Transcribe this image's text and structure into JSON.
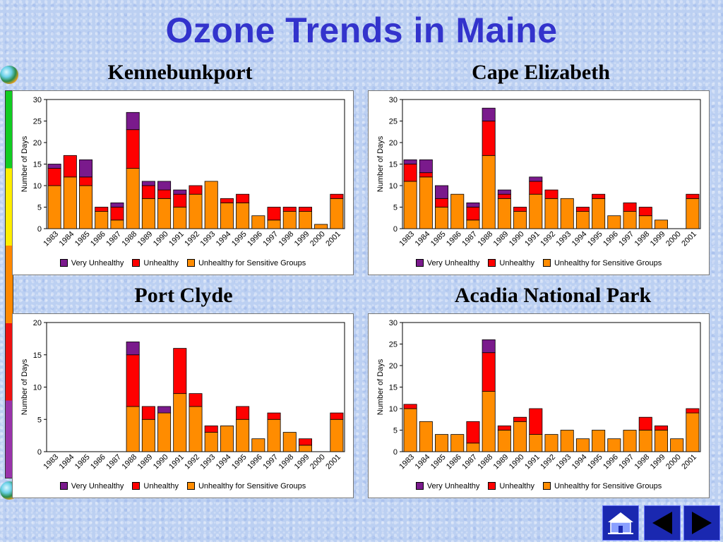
{
  "title": "Ozone Trends in Maine",
  "legend": {
    "very_unhealthy": "Very Unhealthy",
    "unhealthy": "Unhealthy",
    "sensitive": "Unhealthy for Sensitive Groups"
  },
  "colors": {
    "very_unhealthy": "#7a1a8c",
    "unhealthy": "#ff0000",
    "sensitive": "#ff8c00",
    "title": "#3333cc"
  },
  "chart_data": [
    {
      "type": "bar",
      "title": "Kennebunkport",
      "ylabel": "Number of Days",
      "ylim": [
        0,
        30
      ],
      "yticks": [
        0,
        5,
        10,
        15,
        20,
        25,
        30
      ],
      "stacked": true,
      "categories": [
        "1983",
        "1984",
        "1985",
        "1986",
        "1987",
        "1988",
        "1989",
        "1990",
        "1991",
        "1992",
        "1993",
        "1994",
        "1995",
        "1996",
        "1997",
        "1998",
        "1999",
        "2000",
        "2001"
      ],
      "series": [
        {
          "name": "Unhealthy for Sensitive Groups",
          "values": [
            10,
            12,
            10,
            4,
            2,
            14,
            7,
            7,
            5,
            8,
            11,
            6,
            6,
            3,
            2,
            4,
            4,
            1,
            7
          ]
        },
        {
          "name": "Unhealthy",
          "values": [
            4,
            5,
            2,
            1,
            3,
            9,
            3,
            2,
            3,
            2,
            0,
            1,
            2,
            0,
            3,
            1,
            1,
            0,
            1
          ]
        },
        {
          "name": "Very Unhealthy",
          "values": [
            1,
            0,
            4,
            0,
            1,
            4,
            1,
            2,
            1,
            0,
            0,
            0,
            0,
            0,
            0,
            0,
            0,
            0,
            0
          ]
        }
      ],
      "legend": "bottom"
    },
    {
      "type": "bar",
      "title": "Cape Elizabeth",
      "ylabel": "Number of Days",
      "ylim": [
        0,
        30
      ],
      "yticks": [
        0,
        5,
        10,
        15,
        20,
        25,
        30
      ],
      "stacked": true,
      "categories": [
        "1983",
        "1984",
        "1985",
        "1986",
        "1987",
        "1988",
        "1989",
        "1990",
        "1991",
        "1992",
        "1993",
        "1994",
        "1995",
        "1996",
        "1997",
        "1998",
        "1999",
        "2000",
        "2001"
      ],
      "series": [
        {
          "name": "Unhealthy for Sensitive Groups",
          "values": [
            11,
            12,
            5,
            8,
            2,
            17,
            7,
            4,
            8,
            7,
            7,
            4,
            7,
            3,
            4,
            3,
            2,
            0,
            7
          ]
        },
        {
          "name": "Unhealthy",
          "values": [
            4,
            1,
            2,
            0,
            3,
            8,
            1,
            1,
            3,
            2,
            0,
            1,
            1,
            0,
            2,
            2,
            0,
            0,
            1
          ]
        },
        {
          "name": "Very Unhealthy",
          "values": [
            1,
            3,
            3,
            0,
            1,
            3,
            1,
            0,
            1,
            0,
            0,
            0,
            0,
            0,
            0,
            0,
            0,
            0,
            0
          ]
        }
      ],
      "legend": "bottom"
    },
    {
      "type": "bar",
      "title": "Port Clyde",
      "ylabel": "Number of Days",
      "ylim": [
        0,
        20
      ],
      "yticks": [
        0,
        5,
        10,
        15,
        20
      ],
      "stacked": true,
      "categories": [
        "1983",
        "1984",
        "1985",
        "1986",
        "1987",
        "1988",
        "1989",
        "1990",
        "1991",
        "1992",
        "1993",
        "1994",
        "1995",
        "1996",
        "1997",
        "1998",
        "1999",
        "2000",
        "2001"
      ],
      "series": [
        {
          "name": "Unhealthy for Sensitive Groups",
          "values": [
            0,
            0,
            0,
            0,
            0,
            7,
            5,
            6,
            9,
            7,
            3,
            4,
            5,
            2,
            5,
            3,
            1,
            0,
            5
          ]
        },
        {
          "name": "Unhealthy",
          "values": [
            0,
            0,
            0,
            0,
            0,
            8,
            2,
            0,
            7,
            2,
            1,
            0,
            2,
            0,
            1,
            0,
            1,
            0,
            1
          ]
        },
        {
          "name": "Very Unhealthy",
          "values": [
            0,
            0,
            0,
            0,
            0,
            2,
            0,
            1,
            0,
            0,
            0,
            0,
            0,
            0,
            0,
            0,
            0,
            0,
            0
          ]
        }
      ],
      "legend": "bottom"
    },
    {
      "type": "bar",
      "title": "Acadia National Park",
      "ylabel": "Number of Days",
      "ylim": [
        0,
        30
      ],
      "yticks": [
        0,
        5,
        10,
        15,
        20,
        25,
        30
      ],
      "stacked": true,
      "categories": [
        "1983",
        "1984",
        "1985",
        "1986",
        "1987",
        "1988",
        "1989",
        "1990",
        "1991",
        "1992",
        "1993",
        "1994",
        "1995",
        "1996",
        "1997",
        "1998",
        "1999",
        "2000",
        "2001"
      ],
      "series": [
        {
          "name": "Unhealthy for Sensitive Groups",
          "values": [
            10,
            7,
            4,
            4,
            2,
            14,
            5,
            7,
            4,
            4,
            5,
            3,
            5,
            3,
            5,
            5,
            5,
            3,
            9
          ]
        },
        {
          "name": "Unhealthy",
          "values": [
            1,
            0,
            0,
            0,
            5,
            9,
            1,
            1,
            6,
            0,
            0,
            0,
            0,
            0,
            0,
            3,
            1,
            0,
            1
          ]
        },
        {
          "name": "Very Unhealthy",
          "values": [
            0,
            0,
            0,
            0,
            0,
            3,
            0,
            0,
            0,
            0,
            0,
            0,
            0,
            0,
            0,
            0,
            0,
            0,
            0
          ]
        }
      ],
      "legend": "bottom"
    }
  ],
  "nav": {
    "home_icon": "home-icon",
    "prev_icon": "arrow-left-icon",
    "next_icon": "arrow-right-icon"
  }
}
